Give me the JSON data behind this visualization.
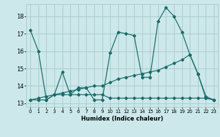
{
  "title": "",
  "xlabel": "Humidex (Indice chaleur)",
  "background_color": "#cce8ea",
  "grid_color": "#aacccc",
  "line_color": "#1a6b6b",
  "xlim": [
    -0.5,
    23.5
  ],
  "ylim": [
    12.8,
    18.7
  ],
  "yticks": [
    13,
    14,
    15,
    16,
    17,
    18
  ],
  "xticks": [
    0,
    1,
    2,
    3,
    4,
    5,
    6,
    7,
    8,
    9,
    10,
    11,
    12,
    13,
    14,
    15,
    16,
    17,
    18,
    19,
    20,
    21,
    22,
    23
  ],
  "line1_x": [
    0,
    1,
    2,
    3,
    4,
    5,
    6,
    7,
    8,
    9,
    10,
    11,
    12,
    13,
    14,
    15,
    16,
    17,
    18,
    19,
    20,
    21,
    22,
    23
  ],
  "line1_y": [
    17.2,
    16.0,
    13.2,
    13.5,
    14.8,
    13.5,
    13.9,
    13.9,
    13.2,
    13.2,
    15.9,
    17.1,
    17.0,
    16.9,
    14.5,
    14.5,
    17.7,
    18.5,
    18.0,
    17.1,
    15.8,
    14.7,
    13.4,
    13.2
  ],
  "line2_x": [
    0,
    1,
    2,
    3,
    4,
    5,
    6,
    7,
    8,
    9,
    10,
    11,
    12,
    13,
    14,
    15,
    16,
    17,
    18,
    19,
    20,
    21,
    22,
    23
  ],
  "line2_y": [
    13.2,
    13.2,
    13.2,
    13.5,
    13.5,
    13.5,
    13.5,
    13.5,
    13.5,
    13.5,
    13.3,
    13.3,
    13.3,
    13.3,
    13.3,
    13.3,
    13.3,
    13.3,
    13.3,
    13.3,
    13.3,
    13.3,
    13.3,
    13.2
  ],
  "line3_x": [
    0,
    1,
    2,
    3,
    4,
    5,
    6,
    7,
    8,
    9,
    10,
    11,
    12,
    13,
    14,
    15,
    16,
    17,
    18,
    19,
    20,
    21,
    22,
    23
  ],
  "line3_y": [
    13.2,
    13.3,
    13.4,
    13.5,
    13.6,
    13.7,
    13.8,
    13.9,
    14.0,
    14.0,
    14.2,
    14.4,
    14.5,
    14.6,
    14.7,
    14.8,
    14.9,
    15.1,
    15.3,
    15.5,
    15.8,
    14.7,
    13.3,
    13.2
  ]
}
